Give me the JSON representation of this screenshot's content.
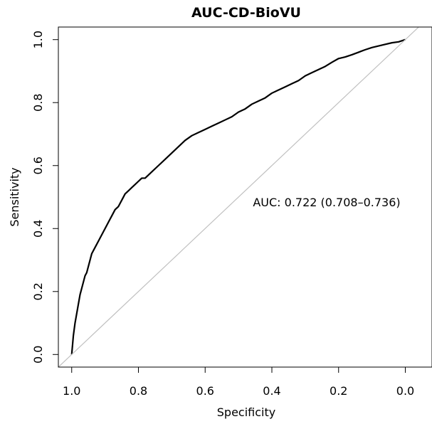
{
  "chart_data": {
    "type": "line",
    "title": "AUC-CD-BioVU",
    "xlabel": "Specificity",
    "ylabel": "Sensitivity",
    "x_reversed": true,
    "xlim": [
      1.04,
      -0.08
    ],
    "ylim": [
      -0.04,
      1.04
    ],
    "xticks": [
      1.0,
      0.8,
      0.6,
      0.4,
      0.2,
      0.0
    ],
    "xtick_labels": [
      "1.0",
      "0.8",
      "0.6",
      "0.4",
      "0.2",
      "0.0"
    ],
    "yticks": [
      0.0,
      0.2,
      0.4,
      0.6,
      0.8,
      1.0
    ],
    "ytick_labels": [
      "0.0",
      "0.2",
      "0.4",
      "0.6",
      "0.8",
      "1.0"
    ],
    "grid": false,
    "legend": "none",
    "annotation": "AUC: 0.722 (0.708–0.736)",
    "series": [
      {
        "role": "roc-curve",
        "color": "#000000",
        "x": [
          1.0,
          0.995,
          0.99,
          0.985,
          0.98,
          0.975,
          0.97,
          0.965,
          0.96,
          0.955,
          0.95,
          0.94,
          0.93,
          0.92,
          0.91,
          0.9,
          0.89,
          0.88,
          0.87,
          0.86,
          0.85,
          0.84,
          0.83,
          0.82,
          0.81,
          0.8,
          0.79,
          0.78,
          0.76,
          0.74,
          0.72,
          0.7,
          0.68,
          0.66,
          0.64,
          0.62,
          0.6,
          0.58,
          0.56,
          0.54,
          0.52,
          0.5,
          0.48,
          0.46,
          0.44,
          0.42,
          0.4,
          0.38,
          0.36,
          0.34,
          0.32,
          0.3,
          0.28,
          0.26,
          0.24,
          0.22,
          0.2,
          0.18,
          0.16,
          0.14,
          0.12,
          0.1,
          0.08,
          0.06,
          0.04,
          0.02,
          0.0
        ],
        "y": [
          0.0,
          0.06,
          0.1,
          0.13,
          0.16,
          0.19,
          0.21,
          0.23,
          0.25,
          0.26,
          0.28,
          0.32,
          0.34,
          0.36,
          0.38,
          0.4,
          0.42,
          0.44,
          0.46,
          0.47,
          0.49,
          0.51,
          0.52,
          0.53,
          0.54,
          0.55,
          0.56,
          0.56,
          0.58,
          0.6,
          0.62,
          0.64,
          0.66,
          0.68,
          0.695,
          0.705,
          0.715,
          0.725,
          0.735,
          0.745,
          0.755,
          0.77,
          0.78,
          0.795,
          0.805,
          0.815,
          0.83,
          0.84,
          0.85,
          0.86,
          0.87,
          0.885,
          0.895,
          0.905,
          0.915,
          0.928,
          0.94,
          0.945,
          0.952,
          0.96,
          0.968,
          0.975,
          0.98,
          0.985,
          0.99,
          0.993,
          1.0
        ]
      },
      {
        "role": "chance-diagonal",
        "color": "#c0c0c0",
        "x": [
          1.04,
          -0.08
        ],
        "y": [
          -0.04,
          1.08
        ]
      }
    ]
  }
}
